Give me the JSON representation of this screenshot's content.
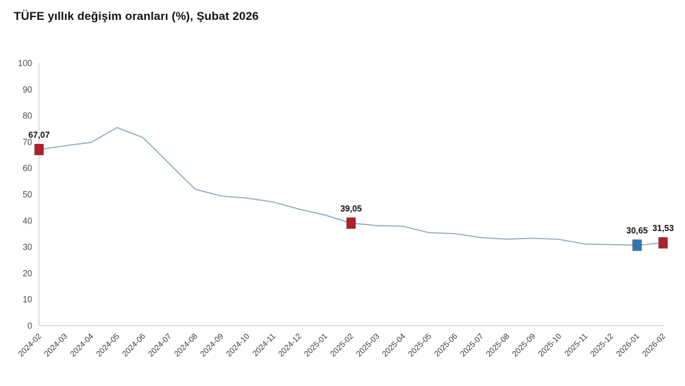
{
  "title": "TÜFE yıllık değişim oranları (%), Şubat 2026",
  "chart_data": {
    "type": "line",
    "title": "TÜFE yıllık değişim oranları (%), Şubat 2026",
    "xlabel": "",
    "ylabel": "",
    "ylim": [
      0,
      100
    ],
    "ytick_step": 10,
    "grid": false,
    "legend": "none",
    "x_labels_rotation_deg": -45,
    "decimal_separator": ",",
    "categories": [
      "2024-02",
      "2024-03",
      "2024-04",
      "2024-05",
      "2024-06",
      "2024-07",
      "2024-08",
      "2024-09",
      "2024-10",
      "2024-11",
      "2024-12",
      "2025-01",
      "2025-02",
      "2025-03",
      "2025-04",
      "2025-05",
      "2025-06",
      "2025-07",
      "2025-08",
      "2025-09",
      "2025-10",
      "2025-11",
      "2025-12",
      "2026-01",
      "2026-02"
    ],
    "series": [
      {
        "name": "TÜFE yıllık değişim oranı (%)",
        "values": [
          67.07,
          68.5,
          69.8,
          75.45,
          71.6,
          61.78,
          51.97,
          49.38,
          48.58,
          47.09,
          44.38,
          42.12,
          39.05,
          38.1,
          37.86,
          35.41,
          35.05,
          33.52,
          32.95,
          33.29,
          32.87,
          31.07,
          30.9,
          30.65,
          31.53
        ]
      }
    ],
    "marked_points": [
      {
        "category": "2024-02",
        "value": 67.07,
        "label": "67,07",
        "marker_color": "#b01f2b"
      },
      {
        "category": "2025-02",
        "value": 39.05,
        "label": "39,05",
        "marker_color": "#b01f2b"
      },
      {
        "category": "2026-01",
        "value": 30.65,
        "label": "30,65",
        "marker_color": "#2e75b6"
      },
      {
        "category": "2026-02",
        "value": 31.53,
        "label": "31,53",
        "marker_color": "#b01f2b"
      }
    ],
    "colors": {
      "line": "#8fa8bc",
      "axis": "#d9d9d9",
      "y_tick_text": "#4d4d4d",
      "x_tick_text": "#3a3a3a",
      "point_label_text": "#111111",
      "marker_red": "#b01f2b",
      "marker_blue": "#2e75b6",
      "background": "#ffffff"
    }
  }
}
